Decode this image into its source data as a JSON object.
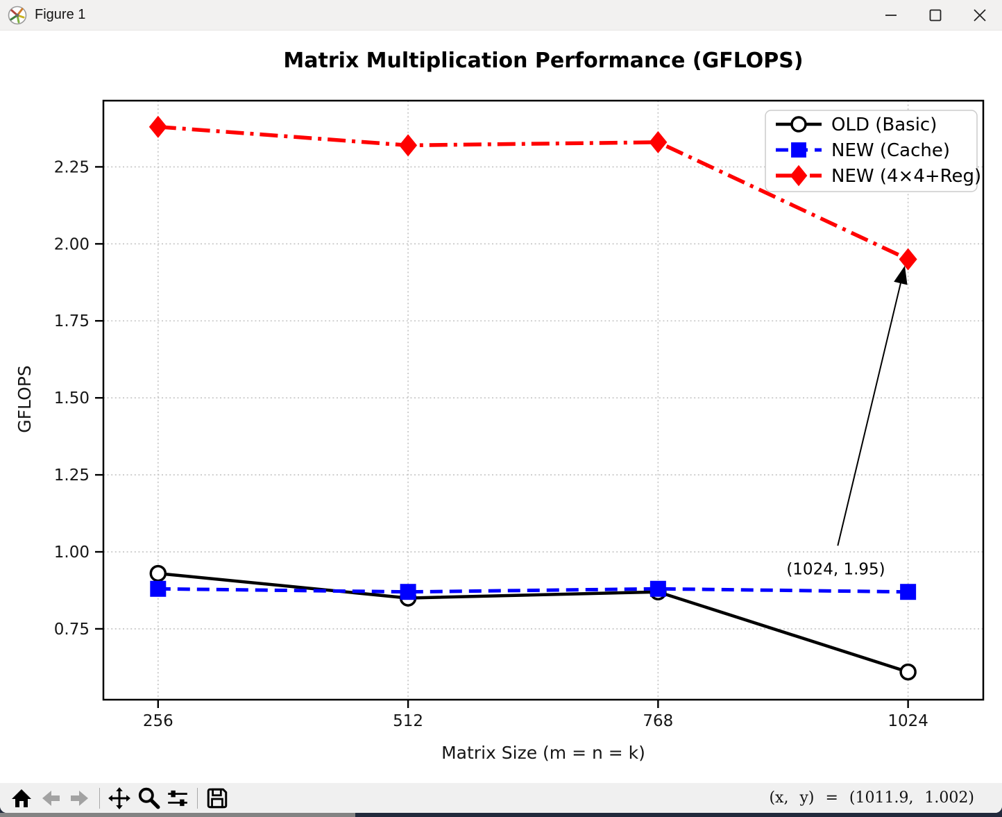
{
  "window": {
    "title": "Figure 1"
  },
  "chart_data": {
    "type": "line",
    "title": "Matrix Multiplication Performance (GFLOPS)",
    "xlabel": "Matrix Size (m = n = k)",
    "ylabel": "GFLOPS",
    "x": [
      256,
      512,
      768,
      1024
    ],
    "xticks": [
      256,
      512,
      768,
      1024
    ],
    "yticks": [
      0.75,
      1.0,
      1.25,
      1.5,
      1.75,
      2.0,
      2.25
    ],
    "xlim": [
      200,
      1101
    ],
    "ylim": [
      0.52,
      2.465
    ],
    "grid": true,
    "legend_position": "upper right",
    "series": [
      {
        "name": "OLD (Basic)",
        "values": [
          0.93,
          0.85,
          0.87,
          0.61
        ],
        "color": "#000000",
        "linestyle": "solid",
        "marker": "circle-open",
        "linewidth": 4.5
      },
      {
        "name": "NEW (Cache)",
        "values": [
          0.88,
          0.87,
          0.88,
          0.87
        ],
        "color": "#0000ff",
        "linestyle": "dashed",
        "marker": "square",
        "linewidth": 5
      },
      {
        "name": "NEW (4×4+Reg)",
        "values": [
          2.38,
          2.32,
          2.33,
          1.95
        ],
        "color": "#ff0000",
        "linestyle": "dashdot",
        "marker": "diamond",
        "linewidth": 5.5
      }
    ],
    "annotation": {
      "text": "(1024, 1.95)",
      "target": [
        1024,
        1.95
      ],
      "text_pos": [
        950,
        0.945
      ],
      "arrow_from": [
        952,
        1.02
      ],
      "arrow_to": [
        1020,
        1.92
      ]
    }
  },
  "toolbar": {
    "icons": [
      "home-icon",
      "back-icon",
      "forward-icon",
      "pan-icon",
      "zoom-to-rect-icon",
      "configure-subplots-icon",
      "save-icon"
    ],
    "status": "(x, y) = (1011.9, 1.002)"
  },
  "colors": {
    "series_old": "#000000",
    "series_cache": "#0000ff",
    "series_reg": "#ff0000",
    "chrome": "#f2f1f0",
    "toolbar": "#f0f0f0"
  }
}
